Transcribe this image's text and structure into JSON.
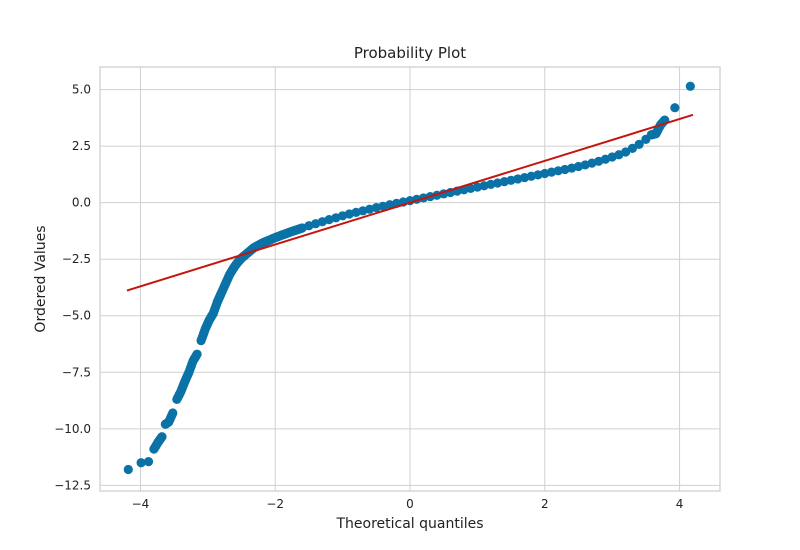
{
  "chart_data": {
    "type": "scatter",
    "title": "Probability Plot",
    "xlabel": "Theoretical quantiles",
    "ylabel": "Ordered Values",
    "xlim": [
      -4.6,
      4.6
    ],
    "ylim": [
      -12.75,
      6.0
    ],
    "x_ticks": [
      -4,
      -2,
      0,
      2,
      4
    ],
    "x_tick_labels": [
      "−4",
      "−2",
      "0",
      "2",
      "4"
    ],
    "y_ticks": [
      5.0,
      2.5,
      0.0,
      -2.5,
      -5.0,
      -7.5,
      -10.0,
      -12.5
    ],
    "y_tick_labels": [
      "5.0",
      "2.5",
      "0.0",
      "−2.5",
      "−5.0",
      "−7.5",
      "−10.0",
      "−12.5"
    ],
    "grid": true,
    "colors": {
      "points": "#0a72a6",
      "fit_line": "#c4160e",
      "grid": "#d0d0d0",
      "frame": "#cccccc"
    },
    "fit_line": {
      "slope": 0.925,
      "intercept": 0.0,
      "x_range": [
        -4.2,
        4.2
      ]
    },
    "series": [
      {
        "x": [
          -4.18,
          -3.99,
          -3.88,
          -3.8,
          -3.74,
          -3.68,
          -3.63,
          -3.58,
          -3.52,
          -3.46,
          -3.4,
          -3.34,
          -3.28,
          -3.22,
          -3.16,
          -3.1,
          -3.04,
          -2.98,
          -2.92,
          -2.86,
          -2.8,
          -2.74,
          -2.68,
          -2.62,
          -2.56,
          -2.5,
          -2.44,
          -2.38,
          -2.32,
          -2.26,
          -2.2,
          -2.14,
          -2.08,
          -2.02,
          -1.96,
          -1.9,
          -1.84,
          -1.78,
          -1.72,
          -1.66,
          -1.6,
          -1.5,
          -1.4,
          -1.3,
          -1.2,
          -1.1,
          -1.0,
          -0.9,
          -0.8,
          -0.7,
          -0.6,
          -0.5,
          -0.4,
          -0.3,
          -0.2,
          -0.1,
          0.0,
          0.1,
          0.2,
          0.3,
          0.4,
          0.5,
          0.6,
          0.7,
          0.8,
          0.9,
          1.0,
          1.1,
          1.2,
          1.3,
          1.4,
          1.5,
          1.6,
          1.7,
          1.8,
          1.9,
          2.0,
          2.1,
          2.2,
          2.3,
          2.4,
          2.5,
          2.6,
          2.7,
          2.8,
          2.9,
          3.0,
          3.1,
          3.2,
          3.3,
          3.4,
          3.5,
          3.58,
          3.65,
          3.72,
          3.78,
          3.93,
          4.16
        ],
        "y": [
          -11.8,
          -11.5,
          -11.45,
          -10.9,
          -10.6,
          -10.35,
          -9.8,
          -9.7,
          -9.3,
          -8.7,
          -8.35,
          -7.9,
          -7.5,
          -7.0,
          -6.7,
          -6.1,
          -5.6,
          -5.2,
          -4.9,
          -4.4,
          -4.0,
          -3.6,
          -3.2,
          -2.9,
          -2.65,
          -2.45,
          -2.3,
          -2.15,
          -2.0,
          -1.9,
          -1.8,
          -1.72,
          -1.65,
          -1.57,
          -1.5,
          -1.43,
          -1.37,
          -1.3,
          -1.24,
          -1.18,
          -1.12,
          -1.02,
          -0.93,
          -0.84,
          -0.75,
          -0.67,
          -0.58,
          -0.5,
          -0.43,
          -0.36,
          -0.29,
          -0.22,
          -0.16,
          -0.09,
          -0.03,
          0.03,
          0.09,
          0.15,
          0.21,
          0.27,
          0.33,
          0.39,
          0.45,
          0.51,
          0.57,
          0.63,
          0.69,
          0.75,
          0.81,
          0.87,
          0.93,
          0.99,
          1.05,
          1.11,
          1.17,
          1.23,
          1.29,
          1.35,
          1.41,
          1.47,
          1.53,
          1.6,
          1.67,
          1.75,
          1.83,
          1.92,
          2.02,
          2.12,
          2.24,
          2.4,
          2.58,
          2.8,
          3.0,
          3.05,
          3.45,
          3.65,
          4.2,
          5.15
        ]
      }
    ]
  }
}
